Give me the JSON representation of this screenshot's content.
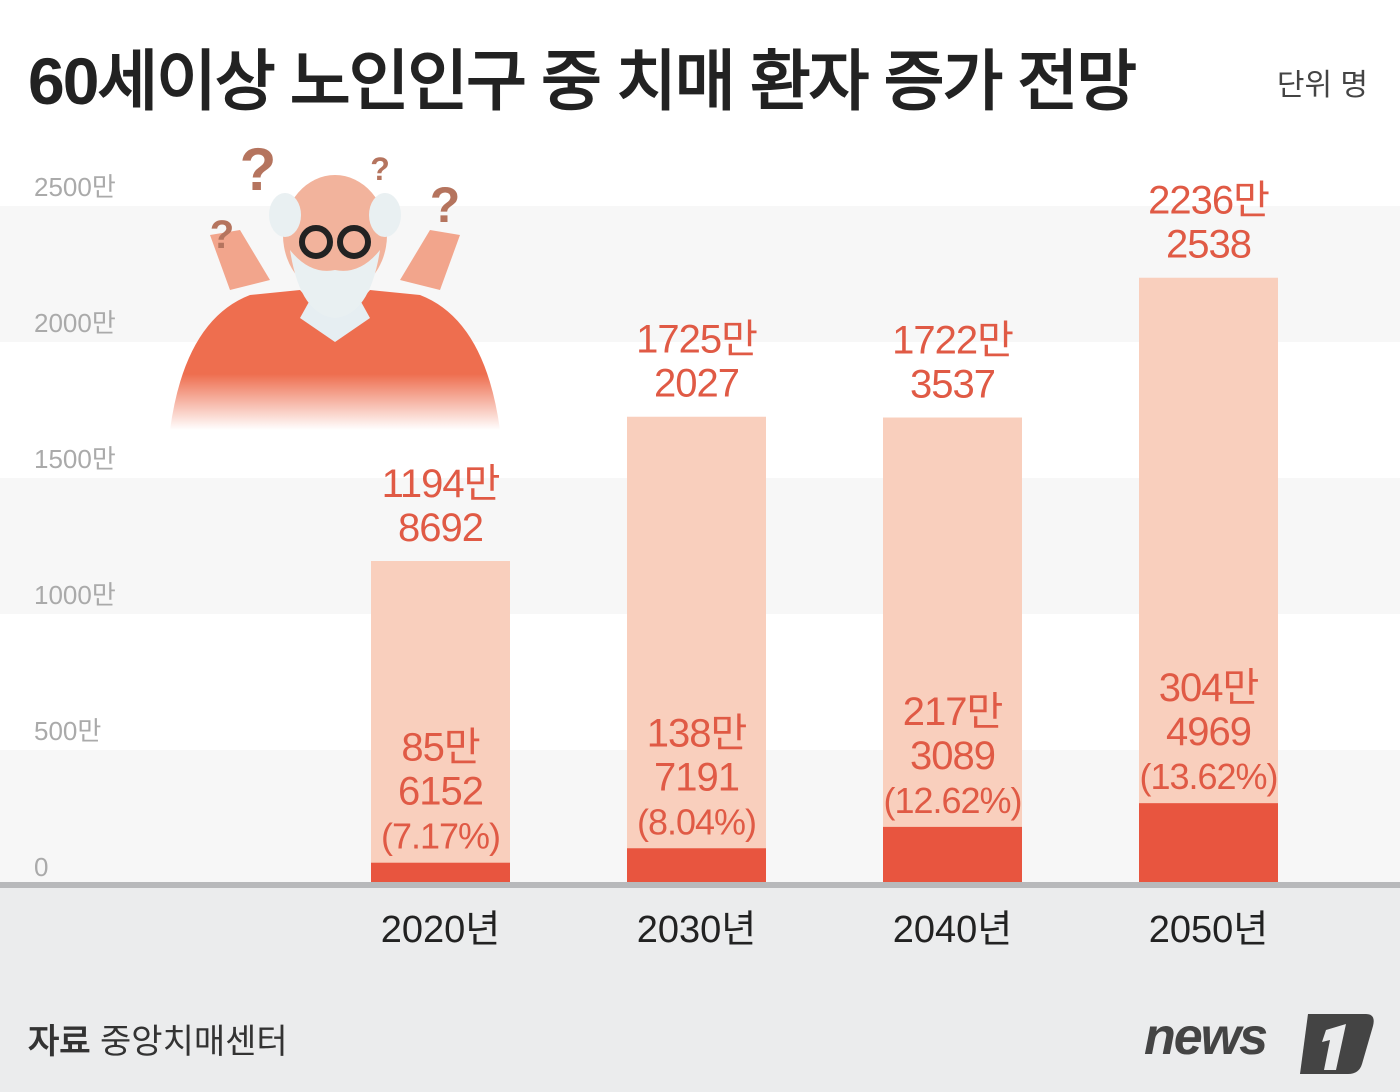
{
  "title": "60세이상 노인인구 중 치매 환자 증가 전망",
  "unit_label": "단위 명",
  "source": {
    "label": "자료",
    "value": "중앙치매센터"
  },
  "logo": "news1",
  "colors": {
    "total_bar": "#f9cfbd",
    "dementia_bar": "#e8553f",
    "label_text": "#e05a45",
    "footer_bg": "#ebeced"
  },
  "chart_data": {
    "type": "bar",
    "title": "60세이상 노인인구 중 치매 환자 증가 전망",
    "categories": [
      "2020년",
      "2030년",
      "2040년",
      "2050년"
    ],
    "series": [
      {
        "values": [
          11948692,
          17252027,
          17223537,
          22362538
        ],
        "labels": [
          [
            "1194만",
            "8692"
          ],
          [
            "1725만",
            "2027"
          ],
          [
            "1722만",
            "3537"
          ],
          [
            "2236만",
            "2538"
          ]
        ]
      },
      {
        "values": [
          856152,
          1387191,
          2173089,
          3044969
        ],
        "labels": [
          [
            "85만",
            "6152",
            "(7.17%)"
          ],
          [
            "138만",
            "7191",
            "(8.04%)"
          ],
          [
            "217만",
            "3089",
            "(12.62%)"
          ],
          [
            "304만",
            "4969",
            "(13.62%)"
          ]
        ]
      }
    ],
    "yticks": [
      0,
      5000000,
      10000000,
      15000000,
      20000000,
      25000000
    ],
    "ytick_labels": [
      "0",
      "500만",
      "1000만",
      "1500만",
      "2000만",
      "2500만"
    ],
    "ylim": [
      0,
      25000000
    ],
    "grid": "alternating bands",
    "overlay": true
  }
}
